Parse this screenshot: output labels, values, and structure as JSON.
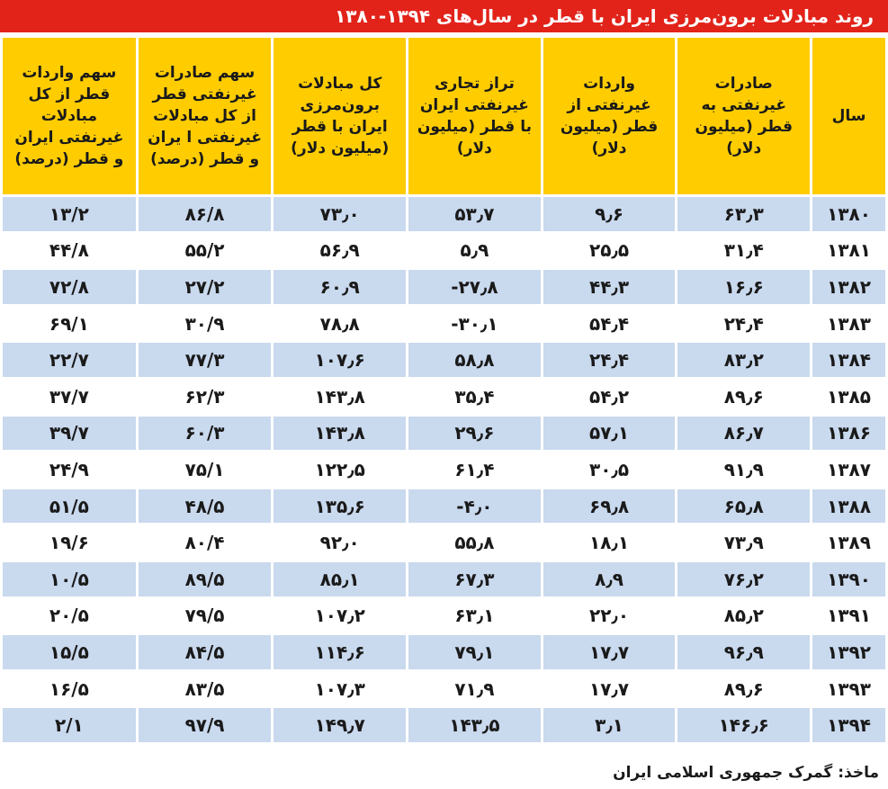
{
  "title": "روند مبادلات برون‌مرزی ایران با قطر در سال‌های ۱۳۹۴-۱۳۸۰",
  "headers": [
    "سال",
    "صادرات غیرنفتی به قطر (میلیون دلار)",
    "واردات غیرنفتی از قطر (میلیون دلار)",
    "تراز تجاری غیرنفتی ایران با قطر (میلیون دلار)",
    "کل مبادلات برون‌مرزی ایران با قطر (میلیون دلار)",
    "سهم صادرات غیرنفتی قطر از کل مبادلات غیرنفتی ا یران و قطر (درصد)",
    "سهم واردات قطر از کل مبادلات غیرنفتی ایران و قطر (درصد)"
  ],
  "rows": [
    [
      "۱۳۸۰",
      "۶۳٫۳",
      "۹٫۶",
      "۵۳٫۷",
      "۷۳٫۰",
      "۸۶/۸",
      "۱۳/۲"
    ],
    [
      "۱۳۸۱",
      "۳۱٫۴",
      "۲۵٫۵",
      "۵٫۹",
      "۵۶٫۹",
      "۵۵/۲",
      "۴۴/۸"
    ],
    [
      "۱۳۸۲",
      "۱۶٫۶",
      "۴۴٫۳",
      "۲۷٫۸-",
      "۶۰٫۹",
      "۲۷/۲",
      "۷۲/۸"
    ],
    [
      "۱۳۸۳",
      "۲۴٫۴",
      "۵۴٫۴",
      "۳۰٫۱-",
      "۷۸٫۸",
      "۳۰/۹",
      "۶۹/۱"
    ],
    [
      "۱۳۸۴",
      "۸۳٫۲",
      "۲۴٫۴",
      "۵۸٫۸",
      "۱۰۷٫۶",
      "۷۷/۳",
      "۲۲/۷"
    ],
    [
      "۱۳۸۵",
      "۸۹٫۶",
      "۵۴٫۲",
      "۳۵٫۴",
      "۱۴۳٫۸",
      "۶۲/۳",
      "۳۷/۷"
    ],
    [
      "۱۳۸۶",
      "۸۶٫۷",
      "۵۷٫۱",
      "۲۹٫۶",
      "۱۴۳٫۸",
      "۶۰/۳",
      "۳۹/۷"
    ],
    [
      "۱۳۸۷",
      "۹۱٫۹",
      "۳۰٫۵",
      "۶۱٫۴",
      "۱۲۲٫۵",
      "۷۵/۱",
      "۲۴/۹"
    ],
    [
      "۱۳۸۸",
      "۶۵٫۸",
      "۶۹٫۸",
      "۴٫۰-",
      "۱۳۵٫۶",
      "۴۸/۵",
      "۵۱/۵"
    ],
    [
      "۱۳۸۹",
      "۷۳٫۹",
      "۱۸٫۱",
      "۵۵٫۸",
      "۹۲٫۰",
      "۸۰/۴",
      "۱۹/۶"
    ],
    [
      "۱۳۹۰",
      "۷۶٫۲",
      "۸٫۹",
      "۶۷٫۳",
      "۸۵٫۱",
      "۸۹/۵",
      "۱۰/۵"
    ],
    [
      "۱۳۹۱",
      "۸۵٫۲",
      "۲۲٫۰",
      "۶۳٫۱",
      "۱۰۷٫۲",
      "۷۹/۵",
      "۲۰/۵"
    ],
    [
      "۱۳۹۲",
      "۹۶٫۹",
      "۱۷٫۷",
      "۷۹٫۱",
      "۱۱۴٫۶",
      "۸۴/۵",
      "۱۵/۵"
    ],
    [
      "۱۳۹۳",
      "۸۹٫۶",
      "۱۷٫۷",
      "۷۱٫۹",
      "۱۰۷٫۳",
      "۸۳/۵",
      "۱۶/۵"
    ],
    [
      "۱۳۹۴",
      "۱۴۶٫۶",
      "۳٫۱",
      "۱۴۳٫۵",
      "۱۴۹٫۷",
      "۹۷/۹",
      "۲/۱"
    ]
  ],
  "source": "ماخذ: گمرک جمهوری اسلامی ایران",
  "colors": {
    "title_bg": "#e2231a",
    "header_bg": "#ffcc00",
    "row_alt_bg": "#c9d9ee"
  }
}
